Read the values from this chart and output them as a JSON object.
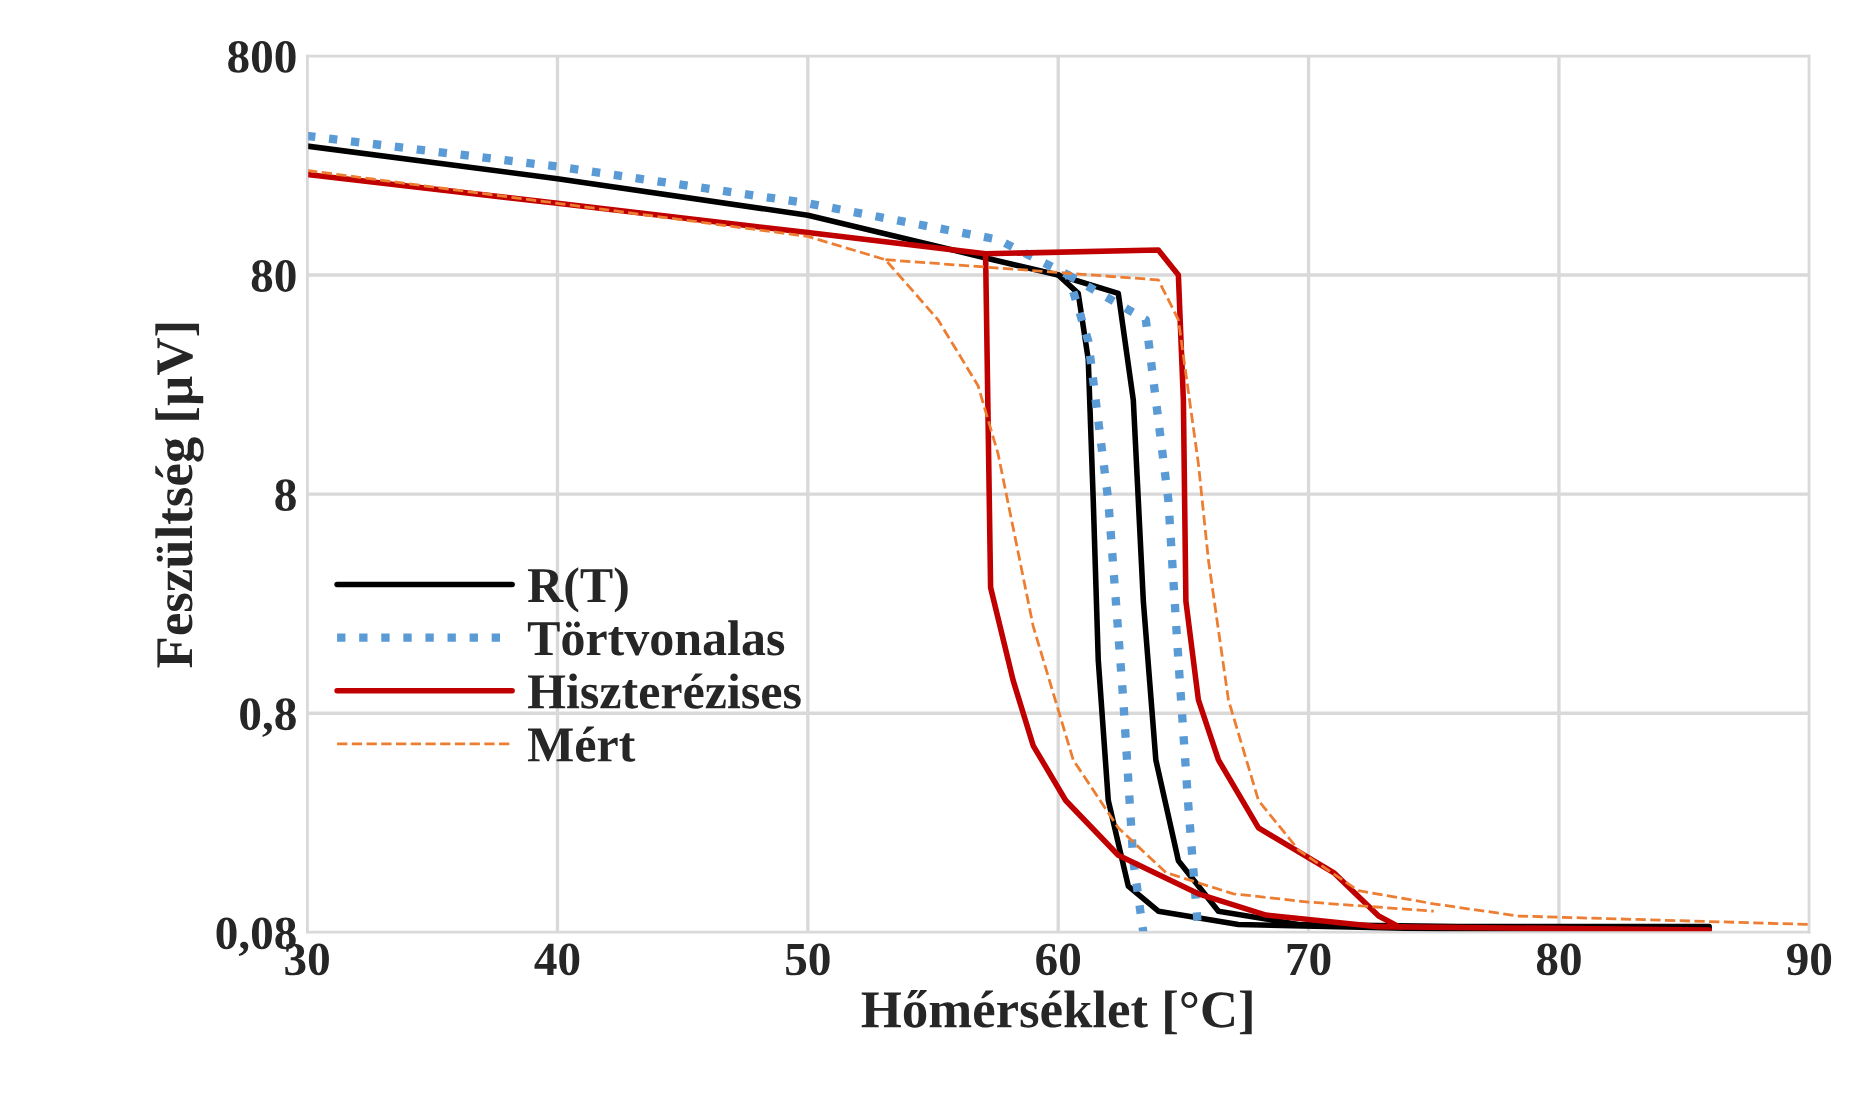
{
  "chart_data": {
    "type": "line",
    "xlabel": "Hőmérséklet [°C]",
    "ylabel": "Feszültség [µV]",
    "log": "y",
    "grid": true,
    "legend": "left",
    "xlim": [
      30,
      90
    ],
    "xticks": [
      30,
      40,
      50,
      60,
      70,
      80,
      90
    ],
    "ylim": [
      0.08,
      800
    ],
    "yticks": [
      {
        "value": 0.08,
        "label": "0,08"
      },
      {
        "value": 0.8,
        "label": "0,8"
      },
      8,
      80,
      800
    ],
    "series": [
      {
        "name": "R(T)",
        "color": "#000000",
        "line_style": "solid",
        "x": [
          30,
          40,
          50,
          57.4,
          60.0,
          60.8,
          61.2,
          61.4,
          61.6,
          62.0,
          62.8,
          64.0,
          67.2,
          75.2,
          86
        ],
        "values": [
          310,
          220,
          150,
          94,
          80,
          66,
          33,
          7.5,
          1.4,
          0.32,
          0.13,
          0.1,
          0.087,
          0.083,
          0.083
        ]
      },
      {
        "color": "#000000",
        "line_style": "solid",
        "x": [
          60.0,
          62.4,
          63.0,
          63.4,
          63.9,
          64.8,
          66.4,
          69.6,
          76,
          86
        ],
        "values": [
          80,
          66,
          21.5,
          2.6,
          0.49,
          0.17,
          0.1,
          0.087,
          0.085,
          0.085
        ]
      },
      {
        "name": "Törtvonalas",
        "color": "#5b9bd5",
        "line_style": "dotted",
        "x": [
          30,
          40,
          50,
          57.6,
          60.4,
          61.2,
          62.0,
          62.6,
          63.0,
          63.4
        ],
        "values": [
          345,
          250,
          170,
          116,
          80,
          40,
          7.5,
          0.92,
          0.17,
          0.08
        ]
      },
      {
        "color": "#5b9bd5",
        "line_style": "dotted",
        "x": [
          60.4,
          63.5,
          64.4,
          64.8,
          65.2,
          65.5,
          65.6
        ],
        "values": [
          80,
          50,
          7.5,
          1.4,
          0.3,
          0.11,
          0.08
        ]
      },
      {
        "name": "Hiszterézises",
        "color": "#c00000",
        "line_style": "solid",
        "x": [
          30,
          40,
          50,
          57.1,
          57.3,
          58.2,
          59.0,
          60.3,
          62.4,
          65.6,
          68.3,
          72.8,
          86
        ],
        "values": [
          230,
          170,
          125,
          100,
          3.0,
          1.13,
          0.57,
          0.32,
          0.18,
          0.12,
          0.096,
          0.085,
          0.082
        ]
      },
      {
        "color": "#c00000",
        "line_style": "solid",
        "x": [
          57.1,
          64.0,
          64.8,
          65.0,
          65.1,
          65.6,
          66.4,
          68.0,
          71.0,
          72.8,
          73.6
        ],
        "values": [
          100,
          104,
          80,
          21.5,
          2.6,
          0.92,
          0.49,
          0.24,
          0.15,
          0.095,
          0.085
        ]
      },
      {
        "name": "Mért",
        "color": "#ed7d31",
        "line_style": "dashed",
        "x": [
          30,
          40,
          50,
          53.1,
          55.2,
          56.8,
          57.6,
          59.0,
          60.6,
          62.4,
          64.3,
          67.0,
          70.0,
          75.0
        ],
        "values": [
          240,
          170,
          120,
          94,
          50,
          25,
          12.2,
          2.0,
          0.49,
          0.24,
          0.15,
          0.12,
          0.11,
          0.1
        ]
      },
      {
        "color": "#ed7d31",
        "line_style": "dashed",
        "x": [
          53.1,
          64.0,
          64.8,
          65.6,
          66.0,
          66.8,
          68.0,
          69.6,
          72.0,
          75.0,
          78.4,
          90
        ],
        "values": [
          94,
          76,
          50,
          11,
          4.0,
          0.92,
          0.32,
          0.19,
          0.124,
          0.108,
          0.095,
          0.087
        ]
      }
    ]
  }
}
